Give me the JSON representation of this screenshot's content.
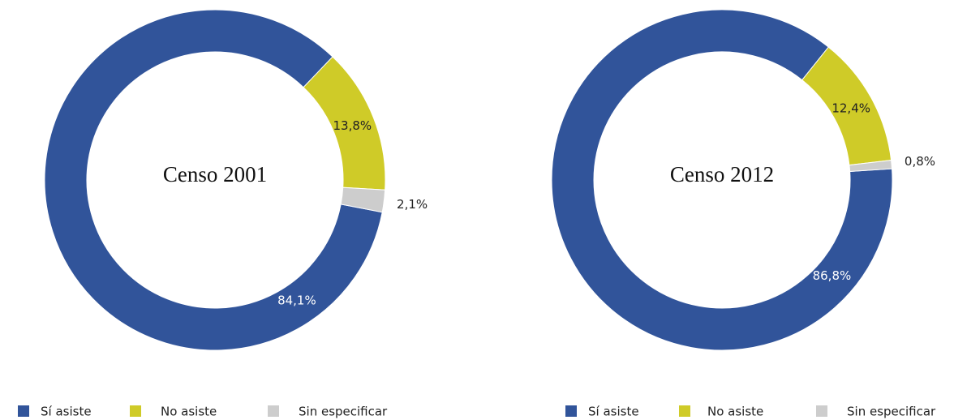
{
  "chart_data": [
    {
      "type": "donut",
      "title": "Censo 2001",
      "categories": [
        "Sí asiste",
        "No asiste",
        "Sin especificar"
      ],
      "values": [
        84.1,
        13.8,
        2.1
      ],
      "value_labels": [
        "84,1%",
        "13,8%",
        "2,1%"
      ],
      "colors": [
        "#31549a",
        "#cfcb28",
        "#cdcdcd"
      ]
    },
    {
      "type": "donut",
      "title": "Censo 2012",
      "categories": [
        "Sí asiste",
        "No asiste",
        "Sin especificar"
      ],
      "values": [
        86.8,
        12.4,
        0.8
      ],
      "value_labels": [
        "86,8%",
        "12,4%",
        "0,8%"
      ],
      "colors": [
        "#31549a",
        "#cfcb28",
        "#cdcdcd"
      ]
    }
  ]
}
